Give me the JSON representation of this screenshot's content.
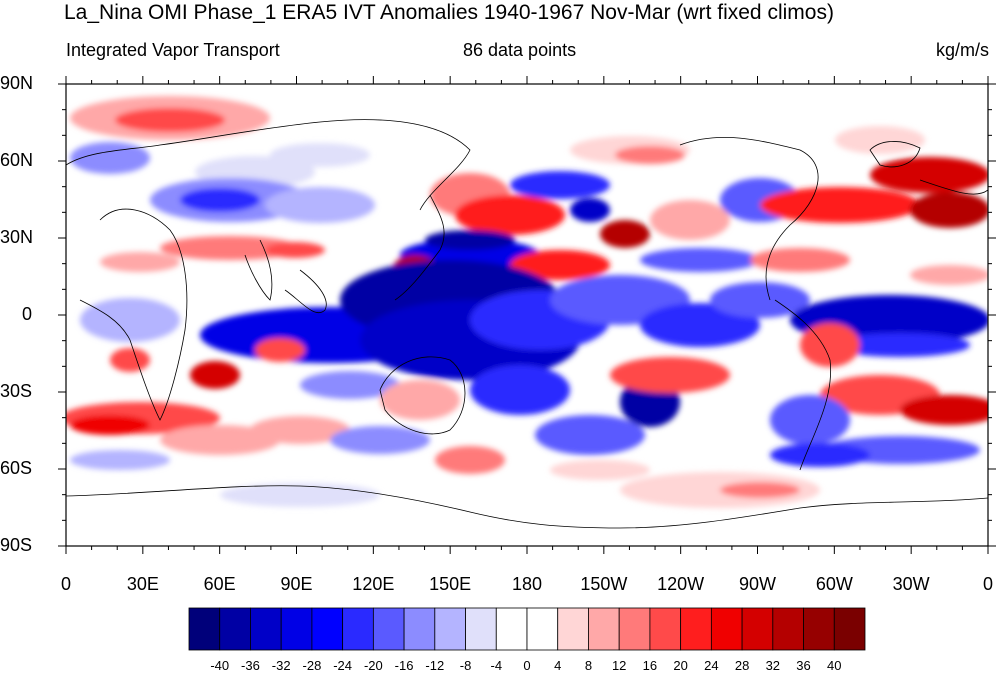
{
  "title": "La_Nina OMI Phase_1 ERA5 IVT Anomalies 1940-1967 Nov-Mar (wrt fixed climos)",
  "subtitle_left": "Integrated Vapor Transport",
  "subtitle_center": "86 data points",
  "subtitle_right": "kg/m/s",
  "lat_labels": [
    "90N",
    "60N",
    "30N",
    "0",
    "30S",
    "60S",
    "90S"
  ],
  "lon_labels": [
    "0",
    "30E",
    "60E",
    "90E",
    "120E",
    "150E",
    "180",
    "150W",
    "120W",
    "90W",
    "60W",
    "30W",
    "0"
  ],
  "colorbar": {
    "labels": [
      "-40",
      "-36",
      "-32",
      "-28",
      "-24",
      "-20",
      "-16",
      "-12",
      "-8",
      "-4",
      "0",
      "4",
      "8",
      "12",
      "16",
      "20",
      "24",
      "28",
      "32",
      "36",
      "40"
    ],
    "colors": [
      "#00007a",
      "#0000a4",
      "#0000c8",
      "#0000e6",
      "#0000ff",
      "#2a2aff",
      "#5a5aff",
      "#8c8cff",
      "#b4b4ff",
      "#e0e0fa",
      "#ffffff",
      "#ffffff",
      "#ffd6d6",
      "#ffa8a8",
      "#ff7a7a",
      "#ff4a4a",
      "#ff1e1e",
      "#f00000",
      "#d40000",
      "#b40000",
      "#960000",
      "#7a0000"
    ]
  }
}
